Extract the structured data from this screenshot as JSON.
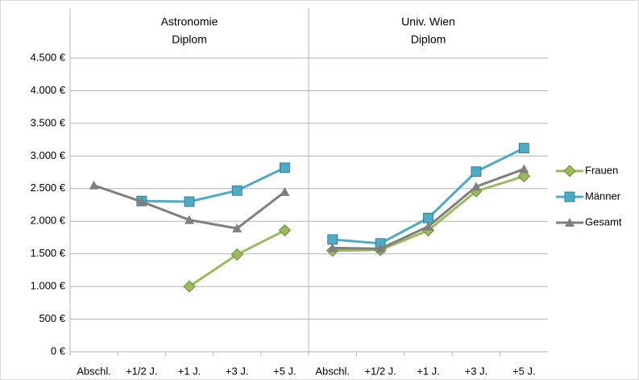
{
  "chart_data": [
    {
      "type": "line",
      "title": "Astronomie",
      "subtitle": "Diplom",
      "categories": [
        "Abschl.",
        "+1/2 J.",
        "+1 J.",
        "+3 J.",
        "+5 J."
      ],
      "series": [
        {
          "color": "#9bbb59",
          "marker": "diamond",
          "values": [
            null,
            null,
            1000,
            1490,
            1860
          ]
        },
        {
          "color": "#4bacc6",
          "marker": "square",
          "values": [
            null,
            2310,
            2300,
            2470,
            2820
          ]
        },
        {
          "color": "#7f7f7f",
          "marker": "triangle",
          "values": [
            2550,
            2300,
            2020,
            1890,
            2450
          ]
        }
      ],
      "ylim": [
        0,
        4500
      ],
      "yticks": [
        {
          "value": 0,
          "label": "0 €"
        },
        {
          "value": 500,
          "label": "500 €"
        },
        {
          "value": 1000,
          "label": "1.000 €"
        },
        {
          "value": 1500,
          "label": "1.500 €"
        },
        {
          "value": 2000,
          "label": "2.000 €"
        },
        {
          "value": 2500,
          "label": "2.500 €"
        },
        {
          "value": 3000,
          "label": "3.000 €"
        },
        {
          "value": 3500,
          "label": "3.500 €"
        },
        {
          "value": 4000,
          "label": "4.000 €"
        },
        {
          "value": 4500,
          "label": "4.500 €"
        }
      ],
      "grid": true
    },
    {
      "type": "line",
      "title": "Univ. Wien",
      "subtitle": "Diplom",
      "categories": [
        "Abschl.",
        "+1/2 J.",
        "+1 J.",
        "+3 J.",
        "+5 J."
      ],
      "series": [
        {
          "name": "Frauen",
          "color": "#9bbb59",
          "marker": "diamond",
          "values": [
            1550,
            1560,
            1860,
            2460,
            2690
          ]
        },
        {
          "name": "Männer",
          "color": "#4bacc6",
          "marker": "square",
          "values": [
            1720,
            1660,
            2050,
            2760,
            3120
          ]
        },
        {
          "name": "Gesamt",
          "color": "#7f7f7f",
          "marker": "triangle",
          "values": [
            1590,
            1580,
            1920,
            2530,
            2800
          ]
        }
      ],
      "ylim": [
        0,
        4500
      ],
      "yticks": [
        0,
        500,
        1000,
        1500,
        2000,
        2500,
        3000,
        3500,
        4000,
        4500
      ],
      "grid": true
    }
  ]
}
